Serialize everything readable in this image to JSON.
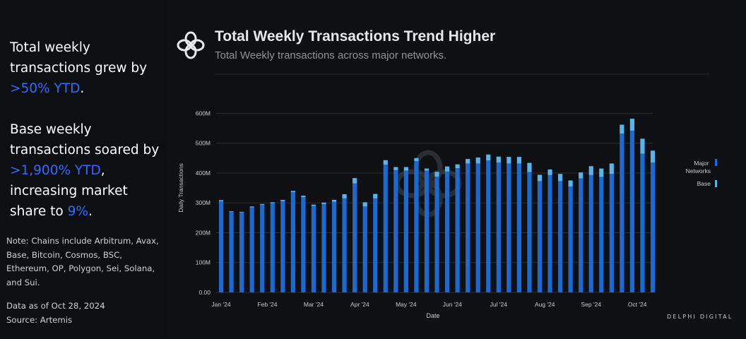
{
  "callouts": {
    "first": {
      "text_a": "Total weekly transactions grew  by ",
      "highlight": ">50% YTD",
      "text_b": "."
    },
    "second": {
      "text_a": "Base weekly transactions soared by ",
      "highlight_a": ">1,900% YTD",
      "text_b": ", increasing market share to ",
      "highlight_b": "9%",
      "text_c": "."
    }
  },
  "note": "Note: Chains include Arbitrum, Avax, Base, Bitcoin, Cosmos, BSC, Ethereum, OP, Polygon, Sei, Solana, and Sui.",
  "data_as_of": "Data as of Oct 28, 2024",
  "source": "Source: Artemis",
  "brand": "DELPHI DIGITAL",
  "chart_data": {
    "type": "bar",
    "stacked": true,
    "title": "Total Weekly Transactions Trend Higher",
    "subtitle": "Total Weekly transactions across major networks.",
    "xlabel": "Date",
    "ylabel": "Daily Transactions",
    "ylim": [
      0,
      620
    ],
    "yticks": [
      0,
      100,
      200,
      300,
      400,
      500,
      600
    ],
    "ytick_labels": [
      "0.00",
      "100M",
      "200M",
      "300M",
      "400M",
      "500M",
      "600M"
    ],
    "xtick_labels": [
      "Jan '24",
      "Feb '24",
      "Mar '24",
      "Apr '24",
      "May '24",
      "Jun '24",
      "Jul '24",
      "Aug '24",
      "Sep '24",
      "Oct '24"
    ],
    "xtick_positions": [
      0,
      4.5,
      9,
      13.5,
      18,
      22.5,
      27,
      31.5,
      36,
      40.5
    ],
    "legend": {
      "position": "right",
      "entries": [
        "Major Networks",
        "Base"
      ]
    },
    "colors": {
      "major": "#1b6ad2",
      "base": "#5ab4ec",
      "grid": "#2a2c31",
      "axis_text": "#c9cbd0"
    },
    "series": [
      {
        "name": "Major Networks",
        "values": [
          305,
          270,
          268,
          285,
          293,
          299,
          306,
          336,
          319,
          290,
          296,
          304,
          315,
          365,
          288,
          315,
          428,
          410,
          408,
          440,
          408,
          388,
          405,
          416,
          432,
          432,
          442,
          435,
          432,
          432,
          403,
          373,
          393,
          373,
          355,
          382,
          393,
          387,
          397,
          532,
          542,
          465,
          435
        ]
      },
      {
        "name": "Base",
        "values": [
          4,
          2,
          2,
          3,
          3,
          3,
          4,
          4,
          5,
          4,
          5,
          6,
          14,
          18,
          14,
          15,
          15,
          10,
          12,
          10,
          7,
          16,
          17,
          13,
          15,
          20,
          20,
          20,
          22,
          22,
          31,
          21,
          19,
          24,
          20,
          20,
          30,
          28,
          35,
          30,
          40,
          50,
          40
        ]
      }
    ]
  }
}
